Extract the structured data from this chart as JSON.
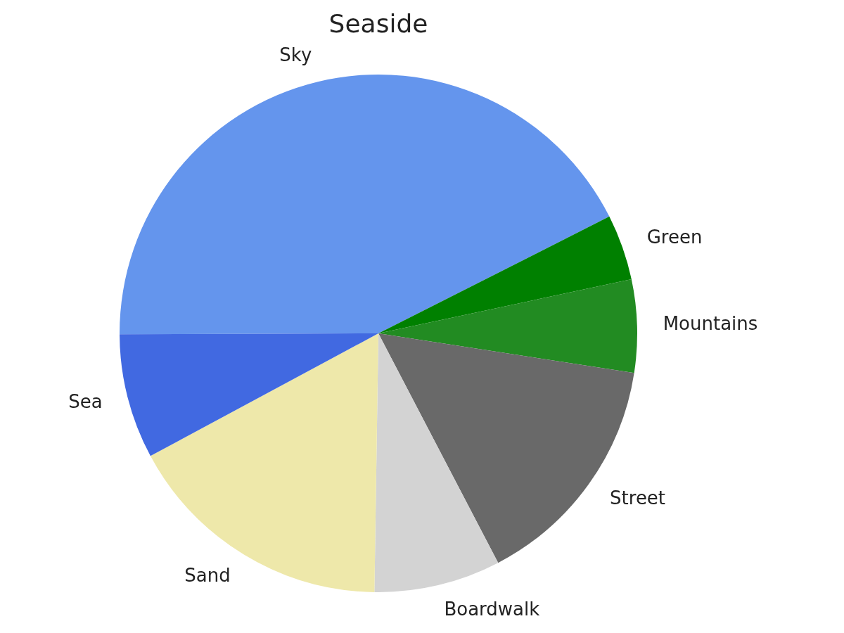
{
  "chart_data": {
    "type": "pie",
    "title": "Seaside",
    "categories": [
      "Sky",
      "Green",
      "Mountains",
      "Street",
      "Boardwalk",
      "Sand",
      "Sea"
    ],
    "values": [
      42.6,
      4.1,
      5.8,
      14.9,
      7.9,
      16.9,
      7.8
    ],
    "colors": [
      "#6495ed",
      "#008000",
      "#228b22",
      "#696969",
      "#d3d3d3",
      "#eee8aa",
      "#4169e1"
    ]
  }
}
